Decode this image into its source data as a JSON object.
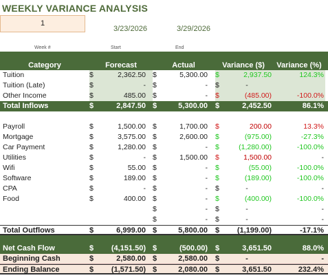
{
  "title": "WEEKLY VARIANCE ANALYSIS",
  "week_value": "1",
  "start_date": "3/23/2026",
  "end_date": "3/29/2026",
  "sub_labels": {
    "week": "Week #",
    "start": "Start",
    "end": "End"
  },
  "headers": {
    "category": "Category",
    "forecast": "Forecast",
    "actual": "Actual",
    "var_dollar": "Variance ($)",
    "var_pct": "Variance (%)"
  },
  "dollar": "$",
  "inflows": [
    {
      "label": "Tuition",
      "f": "2,362.50",
      "a": "5,300.00",
      "v": "2,937.50",
      "vc": "green",
      "p": "124.3%",
      "pc": "green"
    },
    {
      "label": "Tuition (Late)",
      "f": "-",
      "a": "-",
      "v": "-",
      "vc": "",
      "p": "",
      "pc": ""
    },
    {
      "label": "Other Income",
      "f": "485.00",
      "a": "-",
      "v": "(485.00)",
      "vc": "red",
      "p": "-100.0%",
      "pc": "red"
    }
  ],
  "total_inflows": {
    "label": "Total Inflows",
    "f": "2,847.50",
    "a": "5,300.00",
    "v": "2,452.50",
    "p": "86.1%"
  },
  "outflows": [
    {
      "label": "Payroll",
      "f": "1,500.00",
      "a": "1,700.00",
      "v": "200.00",
      "vc": "darkred",
      "p": "13.3%",
      "pc": "red",
      "vsc": "red"
    },
    {
      "label": "Mortgage",
      "f": "3,575.00",
      "a": "2,600.00",
      "v": "(975.00)",
      "vc": "green",
      "p": "-27.3%",
      "pc": "green",
      "vsc": "green"
    },
    {
      "label": "Car Payment",
      "f": "1,280.00",
      "a": "-",
      "v": "(1,280.00)",
      "vc": "green",
      "p": "-100.0%",
      "pc": "green",
      "vsc": "green"
    },
    {
      "label": "Utilities",
      "f": "-",
      "a": "1,500.00",
      "v": "1,500.00",
      "vc": "darkred",
      "p": "-",
      "pc": "",
      "vsc": "red"
    },
    {
      "label": "Wifi",
      "f": "55.00",
      "a": "-",
      "v": "(55.00)",
      "vc": "green",
      "p": "-100.0%",
      "pc": "green",
      "vsc": "green"
    },
    {
      "label": "Software",
      "f": "189.00",
      "a": "-",
      "v": "(189.00)",
      "vc": "green",
      "p": "-100.0%",
      "pc": "green",
      "vsc": "green"
    },
    {
      "label": "CPA",
      "f": "-",
      "a": "-",
      "v": "-",
      "vc": "",
      "p": "-",
      "pc": "",
      "vsc": ""
    },
    {
      "label": "Food",
      "f": "400.00",
      "a": "-",
      "v": "(400.00)",
      "vc": "green",
      "p": "-100.0%",
      "pc": "green",
      "vsc": "green"
    },
    {
      "label": "",
      "f": "",
      "a": "-",
      "v": "-",
      "vc": "",
      "p": "-",
      "pc": "",
      "vsc": "",
      "nofd": true
    },
    {
      "label": "",
      "f": "",
      "a": "-",
      "v": "-",
      "vc": "",
      "p": "-",
      "pc": "",
      "vsc": "",
      "nofd": true
    }
  ],
  "total_outflows": {
    "label": "Total Outflows",
    "f": "6,999.00",
    "a": "5,800.00",
    "v": "(1,199.00)",
    "p": "-17.1%"
  },
  "net_cash_flow": {
    "label": "Net Cash Flow",
    "f": "(4,151.50)",
    "a": "(500.00)",
    "v": "3,651.50",
    "p": "88.0%"
  },
  "beginning_cash": {
    "label": "Beginning Cash",
    "f": "2,580.00",
    "a": "2,580.00",
    "v": "-",
    "p": "-"
  },
  "ending_balance": {
    "label": "Ending Balance",
    "f": "(1,571.50)",
    "a": "2,080.00",
    "v": "3,651.50",
    "p": "232.4%"
  }
}
